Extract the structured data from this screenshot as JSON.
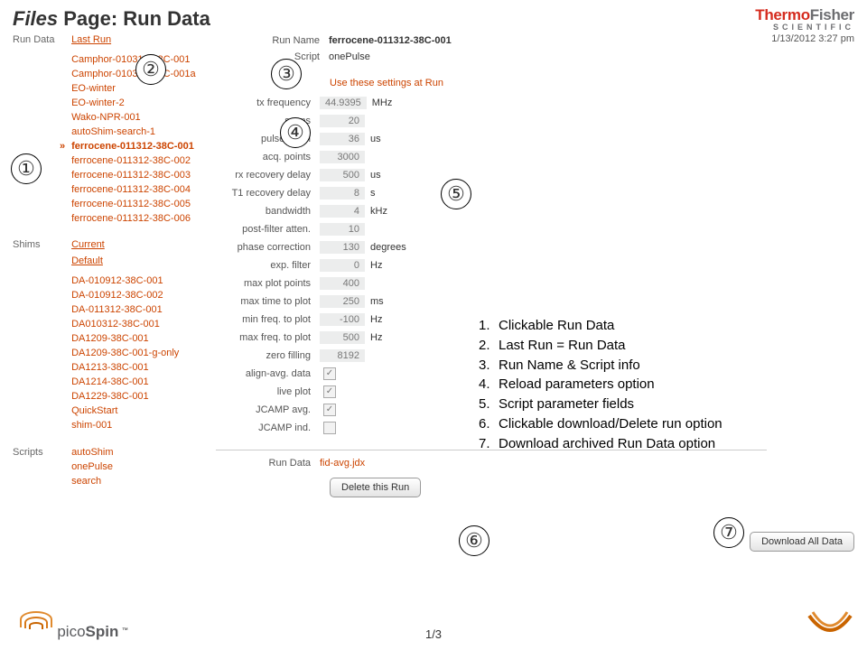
{
  "title": {
    "italic": "Files",
    "rest": " Page: Run Data"
  },
  "brand": {
    "l1a": "Thermo",
    "l1b": "Fisher",
    "l2": "SCIENTIFIC"
  },
  "timestamp": "1/13/2012 3:27 pm",
  "sidebar": {
    "runData": {
      "label": "Run Data",
      "top": "Last Run",
      "items": [
        "Camphor-010312-38C-001",
        "Camphor-010312-38C-001a",
        "EO-winter",
        "EO-winter-2",
        "Wako-NPR-001",
        "autoShim-search-1",
        "ferrocene-011312-38C-001",
        "ferrocene-011312-38C-002",
        "ferrocene-011312-38C-003",
        "ferrocene-011312-38C-004",
        "ferrocene-011312-38C-005",
        "ferrocene-011312-38C-006"
      ],
      "selectedIndex": 6
    },
    "shims": {
      "label": "Shims",
      "top1": "Current",
      "top2": "Default",
      "items": [
        "DA-010912-38C-001",
        "DA-010912-38C-002",
        "DA-011312-38C-001",
        "DA010312-38C-001",
        "DA1209-38C-001",
        "DA1209-38C-001-g-only",
        "DA1213-38C-001",
        "DA1214-38C-001",
        "DA1229-38C-001",
        "QuickStart",
        "shim-001"
      ]
    },
    "scripts": {
      "label": "Scripts",
      "items": [
        "autoShim",
        "onePulse",
        "search"
      ]
    }
  },
  "meta": {
    "runNameLabel": "Run Name",
    "runName": "ferrocene-011312-38C-001",
    "scriptLabel": "Script",
    "script": "onePulse"
  },
  "reloadText": "Use these settings at Run",
  "params": [
    {
      "label": "tx frequency",
      "value": "44.9395",
      "unit": "MHz"
    },
    {
      "label": "scans",
      "value": "20",
      "unit": ""
    },
    {
      "label": "pulse width",
      "value": "36",
      "unit": "us"
    },
    {
      "label": "acq. points",
      "value": "3000",
      "unit": ""
    },
    {
      "label": "rx recovery delay",
      "value": "500",
      "unit": "us"
    },
    {
      "label": "T1 recovery delay",
      "value": "8",
      "unit": "s"
    },
    {
      "label": "bandwidth",
      "value": "4",
      "unit": "kHz"
    },
    {
      "label": "post-filter atten.",
      "value": "10",
      "unit": ""
    },
    {
      "label": "phase correction",
      "value": "130",
      "unit": "degrees"
    },
    {
      "label": "exp. filter",
      "value": "0",
      "unit": "Hz"
    },
    {
      "label": "max plot points",
      "value": "400",
      "unit": ""
    },
    {
      "label": "max time to plot",
      "value": "250",
      "unit": "ms"
    },
    {
      "label": "min freq. to plot",
      "value": "-100",
      "unit": "Hz"
    },
    {
      "label": "max freq. to plot",
      "value": "500",
      "unit": "Hz"
    },
    {
      "label": "zero filling",
      "value": "8192",
      "unit": ""
    }
  ],
  "checks": [
    {
      "label": "align-avg. data",
      "checked": true
    },
    {
      "label": "live plot",
      "checked": true
    },
    {
      "label": "JCAMP avg.",
      "checked": true
    },
    {
      "label": "JCAMP ind.",
      "checked": false
    }
  ],
  "runDataFile": {
    "label": "Run Data",
    "name": "fid-avg.jdx"
  },
  "buttons": {
    "delete": "Delete this Run",
    "downloadAll": "Download All Data"
  },
  "annotations": {
    "1": "①",
    "2": "②",
    "3": "③",
    "4": "④",
    "5": "⑤",
    "6": "⑥",
    "7": "⑦"
  },
  "legend": [
    "Clickable Run Data",
    "Last Run = Run Data",
    "Run Name & Script info",
    "Reload parameters option",
    "Script parameter fields",
    "Clickable download/Delete run option",
    "Download archived Run Data option"
  ],
  "footer": {
    "logo1": "pico",
    "logo2": "Spin",
    "page": "1/3"
  }
}
